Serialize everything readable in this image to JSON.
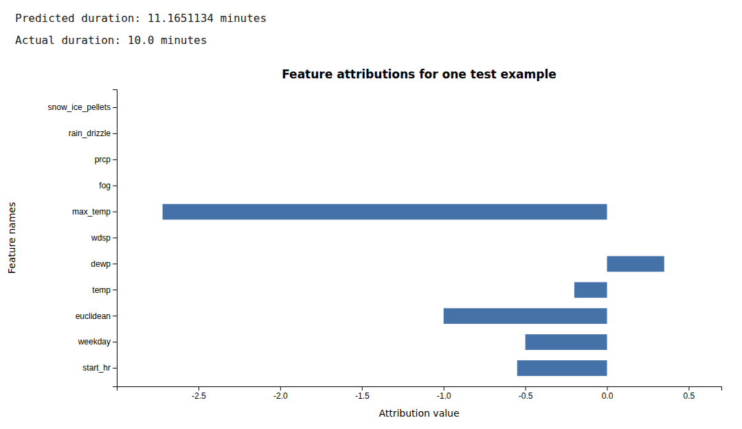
{
  "chart_data": {
    "type": "bar",
    "orientation": "horizontal",
    "title": "Feature attributions for one test example",
    "xlabel": "Attribution value",
    "ylabel": "Feature names",
    "annotations": [
      "Predicted duration: 11.1651134 minutes",
      "Actual duration: 10.0 minutes"
    ],
    "categories": [
      "start_hr",
      "weekday",
      "euclidean",
      "temp",
      "dewp",
      "wdsp",
      "max_temp",
      "fog",
      "prcp",
      "rain_drizzle",
      "snow_ice_pellets"
    ],
    "values": [
      -0.55,
      -0.5,
      -1.0,
      -0.2,
      0.35,
      0.0,
      -2.72,
      0.0,
      0.0,
      0.0,
      0.0
    ],
    "color": "#4472a8",
    "xlim": [
      -3.0,
      0.7
    ],
    "xticks": [
      -2.5,
      {
        "value": -2.0,
        "label": "-2.0"
      },
      -1.5,
      {
        "value": -1.0,
        "label": "-1.0"
      },
      -0.5,
      {
        "value": 0.0,
        "label": "0.0"
      },
      0.5
    ],
    "grid": false
  }
}
